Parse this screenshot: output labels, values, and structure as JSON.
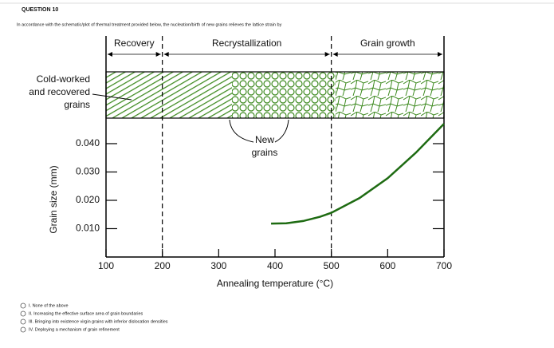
{
  "header": {
    "title": "QUESTION 10"
  },
  "question": "In accordance with the schematic/plot of thermal treatment provided below, the nucleation/birth of new grains relieves the lattice strain by",
  "figure": {
    "type": "line",
    "xlabel": "Annealing temperature (°C)",
    "ylabel": "Grain size (mm)",
    "xlim": [
      100,
      700
    ],
    "xticks": [
      100,
      200,
      300,
      400,
      500,
      600,
      700
    ],
    "ylim": [
      0,
      0.049
    ],
    "yticks": [
      {
        "value": 0.01,
        "label": "0.010"
      },
      {
        "value": 0.02,
        "label": "0.020"
      },
      {
        "value": 0.03,
        "label": "0.030"
      },
      {
        "value": 0.04,
        "label": "0.040"
      }
    ],
    "regions": [
      {
        "label": "Recovery",
        "from": 100,
        "to": 200
      },
      {
        "label": "Recrystallization",
        "from": 200,
        "to": 500
      },
      {
        "label": "Grain growth",
        "from": 500,
        "to": 700
      }
    ],
    "annotations": {
      "cold_worked": [
        "Cold-worked",
        "and recovered",
        "grains"
      ],
      "new_grains": [
        "New",
        "grains"
      ]
    },
    "series": [
      {
        "color": "#1e6b12",
        "x": [
          393,
          420,
          450,
          480,
          500,
          550,
          600,
          650,
          700
        ],
        "values": [
          0.0118,
          0.0119,
          0.0127,
          0.0142,
          0.0156,
          0.0208,
          0.0278,
          0.0368,
          0.047
        ]
      }
    ]
  },
  "options": [
    "I. None of the above",
    "II. Increasing the effective surface area of grain boundaries",
    "III. Bringing into existence virgin grains with inferior dislocation densities",
    "IV. Deploying a mechanism of grain refinement"
  ]
}
